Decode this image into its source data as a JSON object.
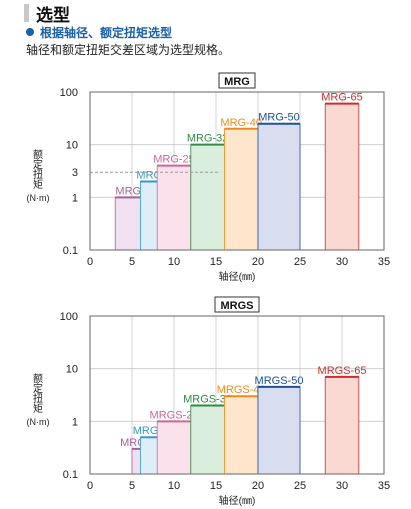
{
  "header": {
    "title": "选型",
    "subtitle": "根据轴径、额定扭矩选型",
    "description": "轴径和额定扭矩交差区域为选型规格。"
  },
  "chart_data": [
    {
      "type": "bar",
      "title": "MRG",
      "xlabel": "轴径(㎜)",
      "ylabel_lines": [
        "额",
        "定",
        "扭",
        "矩",
        "(N·m)"
      ],
      "xlim": [
        0,
        35
      ],
      "ylim": [
        0.1,
        100
      ],
      "yscale": "log",
      "xticks": [
        "0",
        "5",
        "10",
        "15",
        "20",
        "25",
        "30",
        "35"
      ],
      "yticks": [
        "0.1",
        "1",
        "3",
        "10",
        "100"
      ],
      "grid": true,
      "reference_line": {
        "y": 3,
        "label": "3"
      },
      "series": [
        {
          "name": "MRG-16",
          "x_range": [
            3,
            8
          ],
          "value": 1,
          "color": "#a8609a",
          "fill": "#f1e0ef"
        },
        {
          "name": "MRG-20",
          "x_range": [
            6,
            10
          ],
          "value": 2,
          "color": "#3399cc",
          "fill": "#ddeef8"
        },
        {
          "name": "MRG-25",
          "x_range": [
            8,
            12
          ],
          "value": 4,
          "color": "#cc6699",
          "fill": "#fbe1ec"
        },
        {
          "name": "MRG-32",
          "x_range": [
            12,
            16
          ],
          "value": 10,
          "color": "#2e8b45",
          "fill": "#d9eedd"
        },
        {
          "name": "MRG-40",
          "x_range": [
            16,
            20
          ],
          "value": 20,
          "color": "#ee8a1c",
          "fill": "#fde6cc"
        },
        {
          "name": "MRG-50",
          "x_range": [
            20,
            25
          ],
          "value": 25,
          "color": "#1e4fa0",
          "fill": "#d8def0"
        },
        {
          "name": "MRG-65",
          "x_range": [
            28,
            32
          ],
          "value": 60,
          "color": "#cc2d2d",
          "fill": "#fad9d2"
        }
      ]
    },
    {
      "type": "bar",
      "title": "MRGS",
      "xlabel": "轴径(㎜)",
      "ylabel_lines": [
        "额",
        "定",
        "扭",
        "矩",
        "(N·m)"
      ],
      "xlim": [
        0,
        35
      ],
      "ylim": [
        0.1,
        100
      ],
      "yscale": "log",
      "xticks": [
        "0",
        "5",
        "10",
        "15",
        "20",
        "25",
        "30",
        "35"
      ],
      "yticks": [
        "0.1",
        "1",
        "10",
        "100"
      ],
      "grid": true,
      "series": [
        {
          "name": "MRGS-16",
          "x_range": [
            5,
            8
          ],
          "value": 0.3,
          "color": "#a8609a",
          "fill": "#f1e0ef"
        },
        {
          "name": "MRGS-20",
          "x_range": [
            6,
            10
          ],
          "value": 0.5,
          "color": "#3399cc",
          "fill": "#ddeef8"
        },
        {
          "name": "MRGS-25",
          "x_range": [
            8,
            12
          ],
          "value": 1,
          "color": "#cc6699",
          "fill": "#fbe1ec"
        },
        {
          "name": "MRGS-32",
          "x_range": [
            12,
            16
          ],
          "value": 2,
          "color": "#2e8b45",
          "fill": "#d9eedd"
        },
        {
          "name": "MRGS-40",
          "x_range": [
            16,
            20
          ],
          "value": 3,
          "color": "#ee8a1c",
          "fill": "#fde6cc"
        },
        {
          "name": "MRGS-50",
          "x_range": [
            20,
            25
          ],
          "value": 4.5,
          "color": "#1e4fa0",
          "fill": "#d8def0"
        },
        {
          "name": "MRGS-65",
          "x_range": [
            28,
            32
          ],
          "value": 7,
          "color": "#cc2d2d",
          "fill": "#fad9d2"
        }
      ]
    }
  ]
}
